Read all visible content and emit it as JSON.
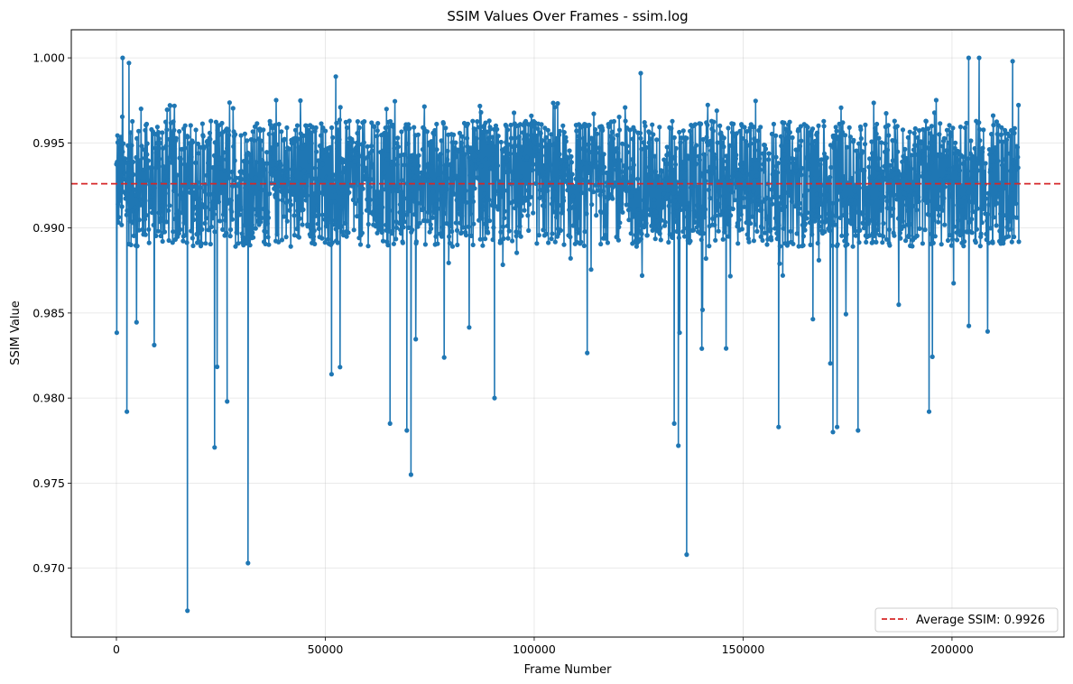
{
  "chart_data": {
    "type": "line",
    "title": "SSIM Values Over Frames - ssim.log",
    "xlabel": "Frame Number",
    "ylabel": "SSIM Value",
    "xlim": [
      -10800,
      226800
    ],
    "ylim": [
      0.96595,
      1.00165
    ],
    "xticks": [
      0,
      50000,
      100000,
      150000,
      200000
    ],
    "yticks": [
      0.97,
      0.975,
      0.98,
      0.985,
      0.99,
      0.995,
      1.0
    ],
    "xtick_labels": [
      "0",
      "50000",
      "100000",
      "150000",
      "200000"
    ],
    "ytick_labels": [
      "0.970",
      "0.975",
      "0.980",
      "0.985",
      "0.990",
      "0.995",
      "1.000"
    ],
    "grid": true,
    "legend_position": "bottom-right",
    "series": [
      {
        "name": "",
        "color": "#1f77b4",
        "marker": "circle",
        "x_range": [
          0,
          216000
        ],
        "mean": 0.9926,
        "notable_points": [
          {
            "x": 17000,
            "y": 0.9675
          },
          {
            "x": 31500,
            "y": 0.9703
          },
          {
            "x": 70500,
            "y": 0.9755
          },
          {
            "x": 136500,
            "y": 0.9708
          },
          {
            "x": 23500,
            "y": 0.9771
          },
          {
            "x": 69500,
            "y": 0.9781
          },
          {
            "x": 134500,
            "y": 0.9772
          },
          {
            "x": 171500,
            "y": 0.978
          },
          {
            "x": 177500,
            "y": 0.9781
          },
          {
            "x": 158500,
            "y": 0.9783
          },
          {
            "x": 172500,
            "y": 0.9783
          },
          {
            "x": 65500,
            "y": 0.9785
          },
          {
            "x": 133500,
            "y": 0.9785
          },
          {
            "x": 194500,
            "y": 0.9792
          },
          {
            "x": 2500,
            "y": 0.9792
          },
          {
            "x": 90500,
            "y": 0.98
          },
          {
            "x": 26500,
            "y": 0.9798
          },
          {
            "x": 51500,
            "y": 0.9814
          },
          {
            "x": 1500,
            "y": 1.0
          },
          {
            "x": 3000,
            "y": 0.9997
          },
          {
            "x": 125500,
            "y": 0.9991
          },
          {
            "x": 52500,
            "y": 0.9989
          },
          {
            "x": 204000,
            "y": 1.0
          },
          {
            "x": 206500,
            "y": 1.0
          },
          {
            "x": 214500,
            "y": 0.9998
          }
        ]
      }
    ],
    "reference_lines": [
      {
        "type": "horizontal",
        "y": 0.9926,
        "color": "#d62728",
        "style": "dashed",
        "label": "Average SSIM: 0.9926"
      }
    ]
  }
}
